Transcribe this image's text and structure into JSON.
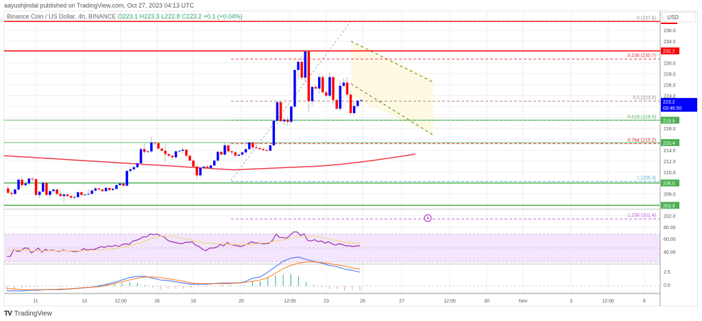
{
  "header": {
    "published_line": "aayushjindal published on TradingView.com, Oct 27, 2023 04:13 UTC",
    "symbol_line": "Binance Coin / US Dollar, 4h, BINANCE",
    "ohlc": "O223.1  H223.3  L222.8  C223.2  +0.1 (+0.04%)"
  },
  "axis": {
    "currency": "USD",
    "price_ticks": [
      "236.0",
      "234.0",
      "230.0",
      "228.0",
      "226.0",
      "224.0",
      "218.0",
      "214.0",
      "212.0",
      "210.0",
      "206.0",
      "202.0"
    ],
    "rsi_ticks": [
      "80.00",
      "60.00",
      "40.00"
    ],
    "macd_ticks": [
      "2.5",
      "0.0"
    ],
    "time_ticks": [
      "11",
      "13",
      "12:00",
      "16",
      "18",
      "20",
      "12:00",
      "23",
      "25",
      "27",
      "12:00",
      "30",
      "Nov",
      "3",
      "12:00",
      "6"
    ]
  },
  "price_labels": {
    "current": "223.2",
    "countdown": "03:46:50",
    "r1": "232.2",
    "s1": "219.5",
    "s2": "215.4",
    "s3": "208.0",
    "s4": "203.9"
  },
  "fib_labels": {
    "f0": "0 (237.6)",
    "f236": "0.236 (230.7)",
    "f5": "0.5 (223.0)",
    "f618": "0.618 (219.5)",
    "f764": "0.764 (215.2)",
    "f1": "1 (208.3)",
    "f1236": "1.236 (201.4)"
  },
  "footer": {
    "brand": "TradingView",
    "logo": "TV"
  },
  "colors": {
    "bull": "#0000ff",
    "bear": "#ff0000",
    "resistance": "#ff0000",
    "support": "#4caf50",
    "ema": "#f23645",
    "rsi": "#9c27b0",
    "rsi_ma": "#f5d58a",
    "macd": "#2962ff",
    "signal": "#ff6d00",
    "current_price_bg": "#0000ff"
  },
  "chart_data": [
    {
      "type": "candlestick",
      "title": "Binance Coin / US Dollar, 4h, BINANCE",
      "xlabel": "",
      "ylabel": "USD",
      "ylim": [
        199,
        238
      ],
      "x_ticks": [
        "11",
        "13",
        "12:00",
        "16",
        "18",
        "20",
        "12:00",
        "23",
        "25",
        "27",
        "12:00",
        "30",
        "Nov",
        "3",
        "12:00",
        "6"
      ],
      "horizontal_lines": [
        {
          "name": "resistance-top",
          "value": 237.6,
          "color": "#ff0000"
        },
        {
          "name": "resistance",
          "value": 232.2,
          "color": "#ff0000"
        },
        {
          "name": "support-1",
          "value": 219.5,
          "color": "#4caf50"
        },
        {
          "name": "support-2",
          "value": 215.4,
          "color": "#4caf50"
        },
        {
          "name": "support-3",
          "value": 208.0,
          "color": "#4caf50"
        },
        {
          "name": "support-4",
          "value": 203.9,
          "color": "#4caf50"
        }
      ],
      "fibonacci": [
        {
          "level": 0,
          "price": 237.6
        },
        {
          "level": 0.236,
          "price": 230.7
        },
        {
          "level": 0.5,
          "price": 223.0
        },
        {
          "level": 0.618,
          "price": 219.5
        },
        {
          "level": 0.764,
          "price": 215.2
        },
        {
          "level": 1,
          "price": 208.3
        },
        {
          "level": 1.236,
          "price": 201.4
        }
      ],
      "last_candle": {
        "open": 223.1,
        "high": 223.3,
        "low": 222.8,
        "close": 223.2,
        "change": 0.1,
        "change_pct": 0.04
      },
      "annotations": [
        "Descending channel (bearish) from ~233 to ~223",
        "100 EMA curve rising near 213-214"
      ],
      "candles": [
        [
          207.0,
          207.5,
          206.0,
          206.2
        ],
        [
          206.2,
          206.6,
          205.5,
          206.0
        ],
        [
          206.0,
          207.0,
          205.8,
          206.8
        ],
        [
          206.8,
          209.0,
          206.5,
          208.6
        ],
        [
          208.6,
          209.2,
          207.0,
          207.6
        ],
        [
          207.6,
          208.2,
          207.2,
          207.9
        ],
        [
          207.9,
          209.0,
          207.5,
          208.8
        ],
        [
          208.8,
          209.0,
          208.2,
          208.7
        ],
        [
          208.7,
          208.8,
          205.5,
          205.8
        ],
        [
          205.8,
          206.5,
          205.2,
          206.4
        ],
        [
          206.4,
          208.3,
          206.2,
          208.0
        ],
        [
          208.0,
          208.2,
          205.6,
          205.8
        ],
        [
          205.8,
          206.8,
          205.2,
          206.5
        ],
        [
          206.5,
          207.0,
          206.0,
          206.8
        ],
        [
          206.8,
          207.0,
          205.8,
          206.0
        ],
        [
          206.0,
          206.5,
          205.4,
          205.6
        ],
        [
          205.6,
          206.1,
          204.4,
          205.9
        ],
        [
          205.9,
          206.2,
          205.3,
          205.6
        ],
        [
          205.6,
          205.9,
          205.0,
          205.3
        ],
        [
          205.3,
          205.8,
          205.0,
          205.4
        ],
        [
          205.4,
          206.5,
          205.2,
          206.3
        ],
        [
          206.3,
          206.5,
          205.6,
          205.8
        ],
        [
          205.8,
          206.0,
          205.7,
          205.9
        ],
        [
          205.9,
          206.8,
          205.8,
          206.0
        ],
        [
          206.0,
          206.8,
          205.8,
          206.6
        ],
        [
          206.6,
          207.3,
          206.4,
          207.0
        ],
        [
          207.0,
          207.1,
          206.6,
          206.8
        ],
        [
          206.8,
          206.9,
          206.3,
          206.5
        ],
        [
          206.5,
          207.2,
          206.3,
          207.1
        ],
        [
          207.1,
          207.1,
          206.5,
          206.7
        ],
        [
          206.7,
          207.2,
          206.5,
          206.9
        ],
        [
          206.9,
          207.8,
          206.8,
          207.6
        ],
        [
          207.6,
          208.0,
          207.5,
          207.9
        ],
        [
          207.9,
          208.1,
          207.3,
          207.5
        ],
        [
          207.5,
          210.3,
          207.3,
          210.2
        ],
        [
          210.2,
          210.8,
          209.8,
          210.5
        ],
        [
          210.5,
          211.1,
          210.2,
          210.9
        ],
        [
          210.9,
          211.8,
          210.6,
          211.6
        ],
        [
          211.6,
          214.5,
          211.2,
          214.2
        ],
        [
          214.2,
          215.2,
          213.2,
          213.7
        ],
        [
          213.7,
          213.8,
          213.6,
          213.8
        ],
        [
          213.8,
          216.5,
          213.5,
          215.4
        ],
        [
          215.4,
          215.5,
          214.8,
          215.3
        ],
        [
          215.3,
          215.3,
          214.0,
          214.3
        ],
        [
          214.3,
          214.4,
          213.8,
          213.9
        ],
        [
          213.9,
          215.2,
          211.9,
          213.3
        ],
        [
          213.3,
          213.4,
          212.6,
          213.0
        ],
        [
          213.0,
          213.3,
          212.2,
          212.7
        ],
        [
          212.7,
          214.0,
          212.4,
          213.8
        ],
        [
          213.8,
          213.9,
          213.6,
          213.9
        ],
        [
          213.9,
          214.6,
          213.4,
          214.1
        ],
        [
          214.1,
          214.2,
          212.5,
          213.0
        ],
        [
          213.0,
          213.2,
          212.0,
          212.1
        ],
        [
          212.1,
          212.5,
          211.4,
          211.0
        ],
        [
          211.0,
          211.3,
          208.7,
          209.4
        ],
        [
          209.4,
          210.9,
          209.0,
          210.8
        ],
        [
          210.8,
          211.1,
          210.3,
          211.0
        ],
        [
          211.0,
          211.3,
          210.6,
          210.7
        ],
        [
          210.7,
          211.6,
          210.4,
          211.2
        ],
        [
          211.2,
          212.3,
          211.0,
          212.1
        ],
        [
          212.1,
          213.9,
          211.8,
          213.7
        ],
        [
          213.7,
          213.8,
          213.1,
          213.2
        ],
        [
          213.2,
          215.5,
          213.0,
          214.9
        ],
        [
          214.9,
          214.9,
          213.5,
          213.8
        ],
        [
          213.8,
          214.0,
          213.1,
          213.6
        ],
        [
          213.6,
          213.9,
          212.6,
          213.0
        ],
        [
          213.0,
          213.3,
          212.8,
          213.2
        ],
        [
          213.2,
          213.8,
          212.9,
          213.6
        ],
        [
          213.6,
          214.4,
          213.2,
          214.2
        ],
        [
          214.2,
          215.6,
          214.0,
          215.4
        ],
        [
          215.4,
          215.5,
          214.2,
          214.5
        ],
        [
          214.5,
          215.6,
          214.2,
          214.4
        ],
        [
          214.4,
          214.5,
          214.1,
          214.2
        ],
        [
          214.2,
          214.5,
          213.8,
          214.0
        ],
        [
          214.0,
          214.2,
          213.7,
          213.9
        ],
        [
          213.9,
          215.0,
          213.8,
          214.9
        ],
        [
          214.9,
          219.5,
          214.7,
          219.4
        ],
        [
          219.4,
          223.2,
          218.7,
          222.8
        ],
        [
          222.8,
          223.0,
          219.2,
          219.3
        ],
        [
          219.3,
          219.9,
          218.6,
          219.6
        ],
        [
          219.6,
          220.2,
          218.5,
          219.2
        ],
        [
          219.2,
          222.2,
          218.9,
          222.0
        ],
        [
          222.0,
          229.0,
          221.6,
          228.7
        ],
        [
          228.7,
          230.5,
          227.0,
          230.2
        ],
        [
          230.2,
          231.3,
          226.8,
          227.3
        ],
        [
          227.3,
          232.5,
          226.5,
          232.1
        ],
        [
          232.1,
          232.5,
          221.0,
          223.0
        ],
        [
          223.0,
          226.0,
          222.2,
          225.6
        ],
        [
          225.6,
          226.1,
          225.0,
          225.3
        ],
        [
          225.3,
          228.0,
          224.4,
          227.4
        ],
        [
          227.4,
          227.8,
          224.6,
          224.6
        ],
        [
          224.6,
          225.0,
          223.8,
          224.0
        ],
        [
          224.0,
          228.3,
          223.6,
          227.4
        ],
        [
          227.4,
          227.6,
          222.4,
          223.2
        ],
        [
          223.2,
          223.5,
          221.4,
          221.6
        ],
        [
          221.6,
          226.7,
          221.2,
          225.8
        ],
        [
          225.8,
          227.2,
          225.2,
          226.4
        ],
        [
          226.4,
          227.4,
          223.5,
          224.2
        ],
        [
          224.2,
          224.8,
          220.4,
          220.8
        ],
        [
          220.8,
          223.0,
          220.2,
          222.1
        ],
        [
          222.1,
          223.2,
          221.8,
          223.1
        ],
        [
          223.1,
          223.3,
          222.8,
          223.2
        ]
      ]
    },
    {
      "type": "line",
      "title": "RSI (14)",
      "ylim": [
        30,
        80
      ],
      "bands": {
        "upper": 70,
        "lower": 30
      },
      "y_ticks": [
        "80.00",
        "60.00",
        "40.00"
      ],
      "series": [
        {
          "name": "RSI",
          "color": "#9c27b0",
          "values": [
            38,
            38,
            48,
            45,
            46,
            50,
            50,
            43,
            46,
            50,
            44,
            48,
            46,
            47,
            46,
            45,
            47,
            46,
            46,
            45,
            45,
            46,
            49,
            47,
            48,
            48,
            50,
            52,
            51,
            53,
            52,
            54,
            52,
            55,
            56,
            55,
            60,
            61,
            63,
            66,
            66,
            70,
            69,
            70,
            67,
            66,
            61,
            59,
            58,
            57,
            56,
            58,
            58,
            59,
            54,
            52,
            48,
            46,
            50,
            50,
            51,
            55,
            53,
            58,
            55,
            54,
            53,
            52,
            54,
            56,
            59,
            57,
            57,
            56,
            56,
            57,
            61,
            70,
            65,
            65,
            64,
            68,
            73,
            73,
            68,
            70,
            61,
            60,
            62,
            59,
            60,
            57,
            59,
            56,
            54,
            56,
            55,
            53,
            53,
            52,
            53,
            53
          ]
        },
        {
          "name": "RSI-based MA",
          "color": "#f5d58a",
          "values": [
            47,
            47,
            47,
            47,
            47,
            47,
            47,
            46,
            46,
            46,
            46,
            46,
            46,
            46,
            46,
            46,
            46,
            46,
            46,
            46,
            46,
            46,
            46,
            46,
            47,
            47,
            47,
            47,
            48,
            48,
            49,
            49,
            50,
            51,
            52,
            53,
            54,
            56,
            57,
            59,
            61,
            63,
            64,
            66,
            67,
            67,
            67,
            67,
            66,
            65,
            64,
            63,
            62,
            61,
            60,
            59,
            58,
            57,
            57,
            57,
            56,
            56,
            56,
            56,
            55,
            55,
            55,
            55,
            55,
            55,
            55,
            56,
            56,
            57,
            57,
            58,
            59,
            60,
            61,
            62,
            63,
            64,
            65,
            66,
            66,
            67,
            67,
            67,
            67,
            66,
            65,
            64,
            63,
            62,
            61,
            60,
            59,
            58,
            57,
            57,
            57,
            57
          ]
        }
      ]
    },
    {
      "type": "line",
      "title": "MACD",
      "ylim": [
        -1.5,
        5
      ],
      "y_ticks": [
        "2.5",
        "0.0"
      ],
      "series": [
        {
          "name": "MACD",
          "color": "#2962ff",
          "values": [
            -0.8,
            -0.8,
            -0.8,
            -0.7,
            -0.7,
            -0.6,
            -0.6,
            -0.6,
            -0.5,
            -0.4,
            -0.3,
            -0.2,
            0.0,
            0.3,
            0.6,
            1.0,
            1.4,
            1.6,
            1.6,
            1.3,
            1.0,
            0.9,
            0.7,
            0.5,
            0.3,
            0.3,
            0.3,
            0.4,
            0.5,
            0.5,
            0.5,
            0.7,
            1.3,
            1.5,
            2.3,
            3.2,
            4.1,
            4.6,
            4.8,
            4.4,
            4.1,
            3.8,
            3.4,
            3.2,
            2.8,
            2.6,
            2.3
          ]
        },
        {
          "name": "Signal",
          "color": "#ff6d00",
          "values": [
            -0.4,
            -0.5,
            -0.6,
            -0.6,
            -0.6,
            -0.6,
            -0.6,
            -0.5,
            -0.5,
            -0.4,
            -0.3,
            -0.2,
            -0.1,
            0.1,
            0.4,
            0.7,
            1.0,
            1.3,
            1.5,
            1.5,
            1.4,
            1.2,
            1.0,
            0.8,
            0.5,
            0.4,
            0.4,
            0.4,
            0.4,
            0.4,
            0.5,
            0.6,
            0.8,
            1.0,
            1.4,
            2.1,
            2.9,
            3.4,
            3.8,
            4.0,
            4.0,
            3.9,
            3.7,
            3.5,
            3.3,
            3.0,
            2.8
          ]
        }
      ]
    }
  ]
}
